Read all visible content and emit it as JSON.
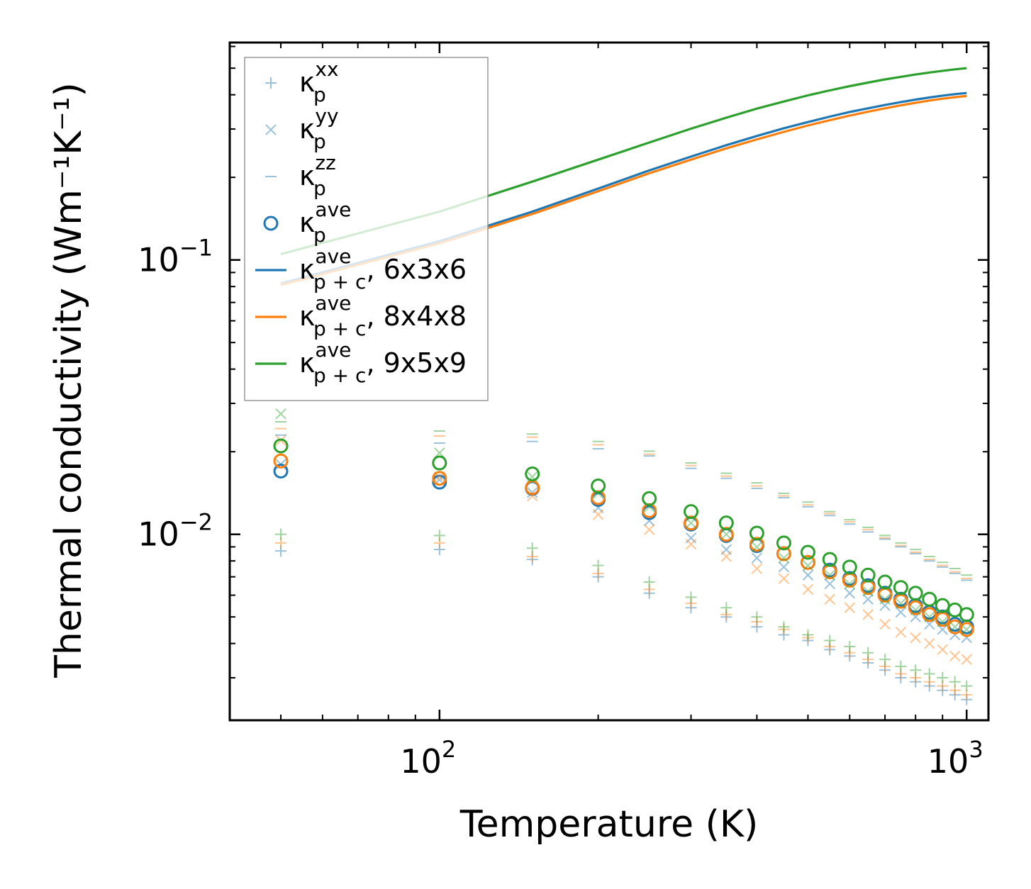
{
  "chart_data": {
    "type": "scatter",
    "xscale": "log",
    "yscale": "log",
    "xlabel": "Temperature (K)",
    "ylabel": "Thermal conductivity (Wm⁻¹K⁻¹)",
    "xlim": [
      40,
      1100
    ],
    "ylim": [
      0.0021,
      0.62
    ],
    "x_ticks": [
      {
        "value": 100,
        "base": "10",
        "exp": "2"
      },
      {
        "value": 1000,
        "base": "10",
        "exp": "3"
      }
    ],
    "y_ticks": [
      {
        "value": 0.01,
        "base": "10",
        "exp": "−2"
      },
      {
        "value": 0.1,
        "base": "10",
        "exp": "−1"
      }
    ],
    "colors": {
      "6x3x6": "#1f77b4",
      "8x4x8": "#ff7f0e",
      "9x5x9": "#2ca02c"
    },
    "x": [
      50,
      100,
      150,
      200,
      250,
      300,
      350,
      400,
      450,
      500,
      550,
      600,
      650,
      700,
      750,
      800,
      850,
      900,
      950,
      1000
    ],
    "scatter_series": [
      {
        "mesh": "6x3x6",
        "kind": "xx",
        "values": [
          0.0087,
          0.0088,
          0.0081,
          0.007,
          0.0061,
          0.0054,
          0.005,
          0.0046,
          0.0043,
          0.0041,
          0.0038,
          0.0036,
          0.0034,
          0.0032,
          0.003,
          0.0029,
          0.0028,
          0.0027,
          0.0026,
          0.0025
        ]
      },
      {
        "mesh": "6x3x6",
        "kind": "yy",
        "values": [
          0.018,
          0.0158,
          0.0142,
          0.0125,
          0.0112,
          0.0097,
          0.0088,
          0.0082,
          0.0076,
          0.0071,
          0.0066,
          0.0061,
          0.0058,
          0.0055,
          0.0052,
          0.005,
          0.0047,
          0.0045,
          0.0043,
          0.0042
        ]
      },
      {
        "mesh": "6x3x6",
        "kind": "zz",
        "values": [
          0.023,
          0.0215,
          0.0218,
          0.0205,
          0.0193,
          0.0174,
          0.016,
          0.0147,
          0.0136,
          0.0126,
          0.0117,
          0.0109,
          0.0102,
          0.0096,
          0.009,
          0.0085,
          0.008,
          0.0076,
          0.0072,
          0.0068
        ]
      },
      {
        "mesh": "6x3x6",
        "kind": "ave",
        "values": [
          0.017,
          0.0155,
          0.0147,
          0.0134,
          0.012,
          0.0109,
          0.0099,
          0.0091,
          0.0085,
          0.0079,
          0.0074,
          0.0069,
          0.0065,
          0.0061,
          0.0058,
          0.0055,
          0.0052,
          0.005,
          0.0047,
          0.0046
        ]
      },
      {
        "mesh": "8x4x8",
        "kind": "xx",
        "values": [
          0.0093,
          0.0093,
          0.0083,
          0.0072,
          0.0063,
          0.0056,
          0.0051,
          0.0048,
          0.0045,
          0.0042,
          0.0039,
          0.0037,
          0.0035,
          0.0033,
          0.0031,
          0.003,
          0.0029,
          0.0028,
          0.0027,
          0.0026
        ]
      },
      {
        "mesh": "8x4x8",
        "kind": "yy",
        "values": [
          0.022,
          0.0162,
          0.0138,
          0.0118,
          0.0104,
          0.0092,
          0.0083,
          0.0075,
          0.0069,
          0.0063,
          0.0058,
          0.0054,
          0.0051,
          0.0047,
          0.0044,
          0.0042,
          0.004,
          0.0038,
          0.0036,
          0.0035
        ]
      },
      {
        "mesh": "8x4x8",
        "kind": "zz",
        "values": [
          0.0243,
          0.0228,
          0.0226,
          0.0212,
          0.0196,
          0.0178,
          0.0163,
          0.015,
          0.0138,
          0.0128,
          0.0119,
          0.0111,
          0.0104,
          0.0097,
          0.0091,
          0.0086,
          0.0081,
          0.0077,
          0.0073,
          0.0069
        ]
      },
      {
        "mesh": "8x4x8",
        "kind": "ave",
        "values": [
          0.0185,
          0.016,
          0.0148,
          0.0136,
          0.0122,
          0.011,
          0.01,
          0.0092,
          0.0085,
          0.0079,
          0.0073,
          0.0068,
          0.0064,
          0.006,
          0.0057,
          0.0054,
          0.0051,
          0.0049,
          0.0046,
          0.0045
        ]
      },
      {
        "mesh": "9x5x9",
        "kind": "xx",
        "values": [
          0.01,
          0.0099,
          0.0089,
          0.0077,
          0.0067,
          0.0059,
          0.0054,
          0.005,
          0.0046,
          0.0043,
          0.0041,
          0.0039,
          0.0037,
          0.0035,
          0.0033,
          0.0032,
          0.0031,
          0.003,
          0.0029,
          0.0028
        ]
      },
      {
        "mesh": "9x5x9",
        "kind": "yy",
        "values": [
          0.0275,
          0.0198,
          0.0162,
          0.0141,
          0.0126,
          0.011,
          0.01,
          0.009,
          0.0082,
          0.0077,
          0.0071,
          0.0066,
          0.0062,
          0.0058,
          0.0056,
          0.0053,
          0.005,
          0.0048,
          0.0046,
          0.0045
        ]
      },
      {
        "mesh": "9x5x9",
        "kind": "zz",
        "values": [
          0.0257,
          0.0238,
          0.0232,
          0.0218,
          0.0201,
          0.0182,
          0.0167,
          0.0154,
          0.0141,
          0.0131,
          0.0121,
          0.0113,
          0.0106,
          0.0099,
          0.0093,
          0.0088,
          0.0083,
          0.0079,
          0.0075,
          0.0071
        ]
      },
      {
        "mesh": "9x5x9",
        "kind": "ave",
        "values": [
          0.021,
          0.0182,
          0.0166,
          0.015,
          0.0135,
          0.0121,
          0.011,
          0.0101,
          0.0093,
          0.0086,
          0.0081,
          0.0076,
          0.0071,
          0.0067,
          0.0064,
          0.0061,
          0.0058,
          0.0055,
          0.0053,
          0.0051
        ]
      }
    ],
    "line_series": [
      {
        "mesh": "6x3x6",
        "x": [
          50,
          100,
          150,
          200,
          250,
          300,
          350,
          400,
          450,
          500,
          550,
          600,
          650,
          700,
          750,
          800,
          850,
          900,
          950,
          1000
        ],
        "values": [
          0.082,
          0.117,
          0.15,
          0.182,
          0.212,
          0.238,
          0.262,
          0.283,
          0.302,
          0.318,
          0.333,
          0.346,
          0.357,
          0.367,
          0.376,
          0.384,
          0.391,
          0.397,
          0.402,
          0.406
        ]
      },
      {
        "mesh": "8x4x8",
        "x": [
          50,
          100,
          150,
          200,
          250,
          300,
          350,
          400,
          450,
          500,
          550,
          600,
          650,
          700,
          750,
          800,
          850,
          900,
          950,
          1000
        ],
        "values": [
          0.081,
          0.115,
          0.147,
          0.178,
          0.207,
          0.232,
          0.255,
          0.275,
          0.293,
          0.309,
          0.323,
          0.336,
          0.347,
          0.357,
          0.366,
          0.374,
          0.381,
          0.387,
          0.392,
          0.396
        ]
      },
      {
        "mesh": "9x5x9",
        "x": [
          50,
          100,
          150,
          200,
          250,
          300,
          350,
          400,
          450,
          500,
          550,
          600,
          650,
          700,
          750,
          800,
          850,
          900,
          950,
          1000
        ],
        "values": [
          0.105,
          0.15,
          0.193,
          0.232,
          0.268,
          0.301,
          0.33,
          0.356,
          0.378,
          0.398,
          0.415,
          0.43,
          0.443,
          0.455,
          0.465,
          0.474,
          0.482,
          0.489,
          0.495,
          0.5
        ]
      }
    ],
    "legend": {
      "position": "upper-left",
      "entries": [
        {
          "marker": "+",
          "color": "#1f77b4",
          "alpha": 0.45,
          "symbol": "κ",
          "sub": "p",
          "sup": "xx",
          "suffix": ""
        },
        {
          "marker": "x",
          "color": "#1f77b4",
          "alpha": 0.45,
          "symbol": "κ",
          "sub": "p",
          "sup": "yy",
          "suffix": ""
        },
        {
          "marker": "-",
          "color": "#1f77b4",
          "alpha": 0.45,
          "symbol": "κ",
          "sub": "p",
          "sup": "zz",
          "suffix": ""
        },
        {
          "marker": "o",
          "color": "#1f77b4",
          "alpha": 1,
          "symbol": "κ",
          "sub": "p",
          "sup": "ave",
          "suffix": ""
        },
        {
          "marker": "line",
          "color": "#1f77b4",
          "alpha": 1,
          "symbol": "κ",
          "sub": "p + c",
          "sup": "ave",
          "suffix": ", 6x3x6"
        },
        {
          "marker": "line",
          "color": "#ff7f0e",
          "alpha": 1,
          "symbol": "κ",
          "sub": "p + c",
          "sup": "ave",
          "suffix": ", 8x4x8"
        },
        {
          "marker": "line",
          "color": "#2ca02c",
          "alpha": 1,
          "symbol": "κ",
          "sub": "p + c",
          "sup": "ave",
          "suffix": ", 9x5x9"
        }
      ]
    }
  }
}
